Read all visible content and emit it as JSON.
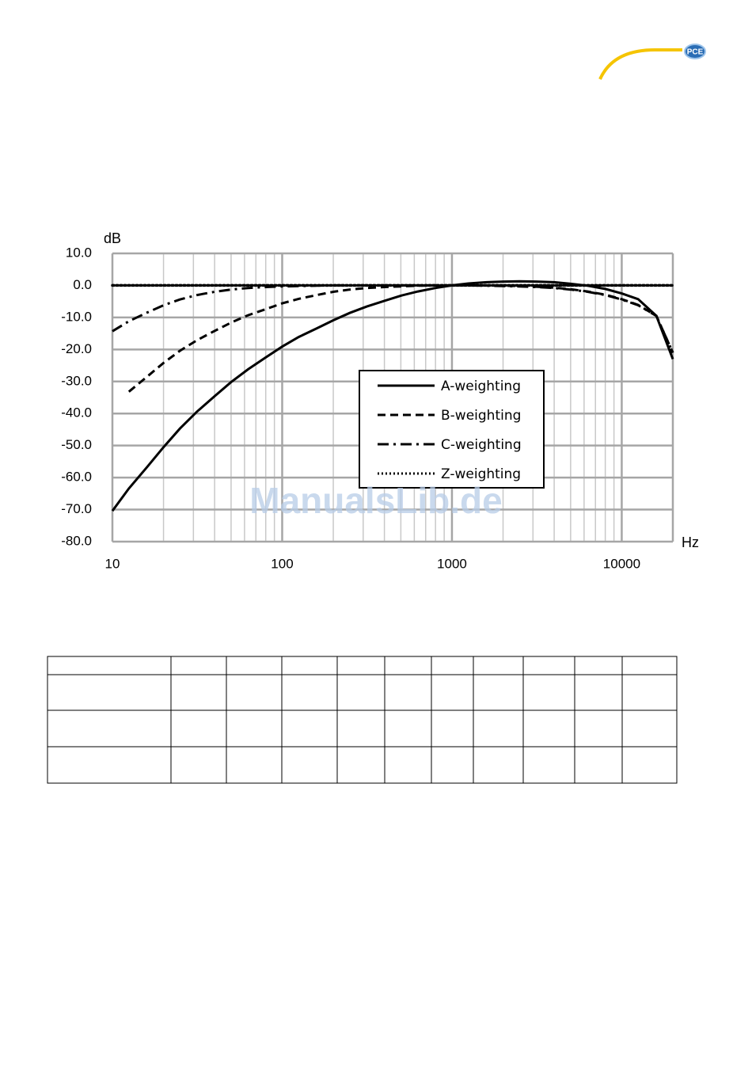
{
  "header": {
    "logo": "PCE"
  },
  "chart_data": {
    "type": "line",
    "y_label": "dB",
    "x_label": "Hz",
    "log_x": true,
    "grid": true,
    "legend": "center",
    "x": [
      10,
      12.5,
      16,
      20,
      25,
      31.5,
      40,
      50,
      63,
      80,
      100,
      125,
      160,
      200,
      250,
      315,
      400,
      500,
      630,
      800,
      1000,
      1250,
      1600,
      2000,
      2500,
      3150,
      4000,
      5000,
      6300,
      8000,
      10000,
      12500,
      16000,
      20000
    ],
    "series": [
      {
        "name": "A-weighting",
        "color": "#000000",
        "dash": "solid",
        "values": [
          -70.4,
          -63.4,
          -56.7,
          -50.5,
          -44.7,
          -39.4,
          -34.6,
          -30.2,
          -26.2,
          -22.5,
          -19.1,
          -16.1,
          -13.4,
          -10.9,
          -8.6,
          -6.6,
          -4.8,
          -3.2,
          -1.9,
          -0.8,
          0,
          0.6,
          1.0,
          1.2,
          1.3,
          1.2,
          1.0,
          0.5,
          -0.1,
          -1.1,
          -2.5,
          -4.3,
          -9.5,
          -23
        ]
      },
      {
        "name": "B-weighting",
        "color": "#000000",
        "dash": "dashed",
        "values": [
          null,
          -33.2,
          -28.5,
          -24.2,
          -20.4,
          -17.1,
          -14.2,
          -11.6,
          -9.3,
          -7.4,
          -5.6,
          -4.2,
          -3.0,
          -2.0,
          -1.3,
          -0.8,
          -0.5,
          -0.3,
          -0.1,
          0,
          0,
          0,
          0,
          -0.1,
          -0.2,
          -0.4,
          -0.7,
          -1.2,
          -1.9,
          -2.9,
          -4.3,
          -6.1,
          -9.5,
          -21
        ]
      },
      {
        "name": "C-weighting",
        "color": "#000000",
        "dash": "dashdot",
        "values": [
          -14.3,
          -11.2,
          -8.5,
          -6.2,
          -4.4,
          -3.0,
          -2.0,
          -1.3,
          -0.8,
          -0.5,
          -0.3,
          -0.2,
          -0.1,
          0,
          0,
          0,
          0,
          0,
          0,
          0,
          0,
          0,
          -0.1,
          -0.2,
          -0.3,
          -0.5,
          -0.8,
          -1.3,
          -2.0,
          -3.0,
          -4.4,
          -6.2,
          -9.5,
          -21
        ]
      },
      {
        "name": "Z-weighting",
        "color": "#000000",
        "dash": "dotted",
        "values": [
          0,
          0,
          0,
          0,
          0,
          0,
          0,
          0,
          0,
          0,
          0,
          0,
          0,
          0,
          0,
          0,
          0,
          0,
          0,
          0,
          0,
          0,
          0,
          0,
          0,
          0,
          0,
          0,
          0,
          0,
          0,
          0,
          0,
          0
        ]
      }
    ],
    "xlim": [
      10,
      20000
    ],
    "xticks": [
      10,
      100,
      1000,
      10000
    ],
    "ylim": [
      -80,
      10
    ],
    "yticks": [
      {
        "value": 10,
        "label": "10.0"
      },
      {
        "value": 0,
        "label": "0.0"
      },
      {
        "value": -10,
        "label": "-10.0"
      },
      {
        "value": -20,
        "label": "-20.0"
      },
      {
        "value": -30,
        "label": "-30.0"
      },
      {
        "value": -40,
        "label": "-40.0"
      },
      {
        "value": -50,
        "label": "-50.0"
      },
      {
        "value": -60,
        "label": "-60.0"
      },
      {
        "value": -70,
        "label": "-70.0"
      },
      {
        "value": -80,
        "label": "-80.0"
      }
    ]
  },
  "watermark": "ManualsLib.de"
}
